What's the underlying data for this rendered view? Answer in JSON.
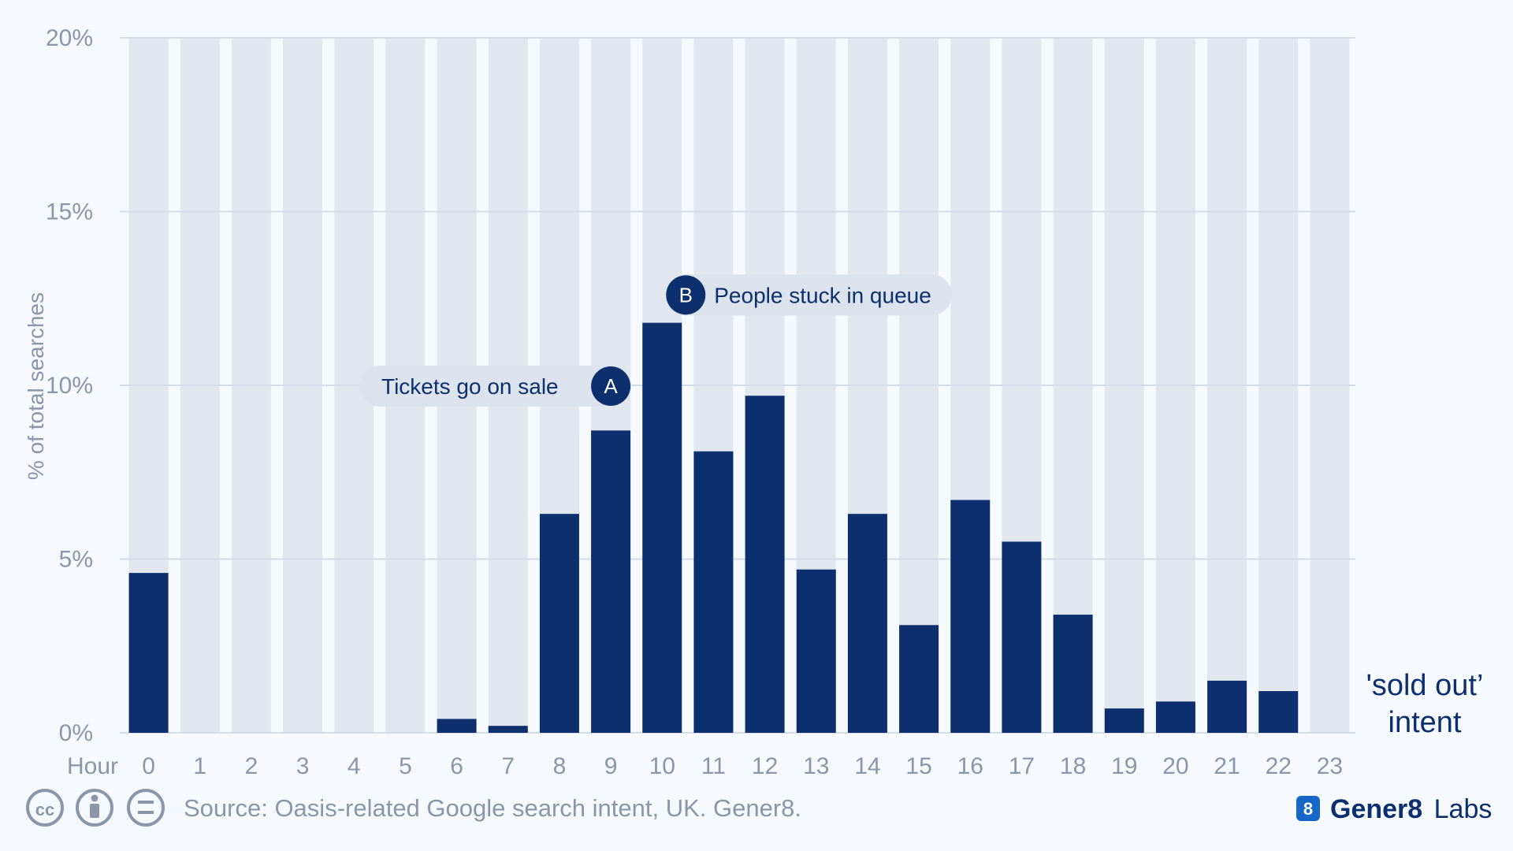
{
  "chart_data": {
    "type": "bar",
    "ylabel": "% of total searches",
    "xlabel": "Hour",
    "categories": [
      "0",
      "1",
      "2",
      "3",
      "4",
      "5",
      "6",
      "7",
      "8",
      "9",
      "10",
      "11",
      "12",
      "13",
      "14",
      "15",
      "16",
      "17",
      "18",
      "19",
      "20",
      "21",
      "22",
      "23"
    ],
    "values": [
      4.6,
      0,
      0,
      0,
      0,
      0,
      0.4,
      0.2,
      6.3,
      8.7,
      11.8,
      8.1,
      9.7,
      4.7,
      6.3,
      3.1,
      6.7,
      5.5,
      3.4,
      0.7,
      0.9,
      1.5,
      1.2,
      0
    ],
    "ylim": [
      0,
      20
    ],
    "yticks": [
      "0%",
      "5%",
      "10%",
      "15%",
      "20%"
    ],
    "ytick_values": [
      0,
      5,
      10,
      15,
      20
    ],
    "grid": true,
    "bar_color": "#0d2f6e",
    "background_bar_color": "#e2e7ef",
    "series_label": [
      "'sold out’",
      "intent"
    ],
    "annotations": [
      {
        "letter": "A",
        "text": "Tickets go on sale",
        "hour": 9,
        "value": 10
      },
      {
        "letter": "B",
        "text": "People stuck in queue",
        "hour": 10,
        "value": 12.6
      }
    ]
  },
  "footer": {
    "source": "Source: Oasis-related Google search intent, UK. Gener8.",
    "brand_bold": "Gener8",
    "brand_light": "Labs",
    "license_icons": [
      "cc-icon",
      "by-attribution-icon",
      "no-derivatives-icon"
    ]
  },
  "colors": {
    "background": "#f6f9fd",
    "navy": "#0d2f6e",
    "muted": "#8c96aa",
    "grid": "#d5dbe7",
    "annotation_bg": "#dde3ec"
  }
}
